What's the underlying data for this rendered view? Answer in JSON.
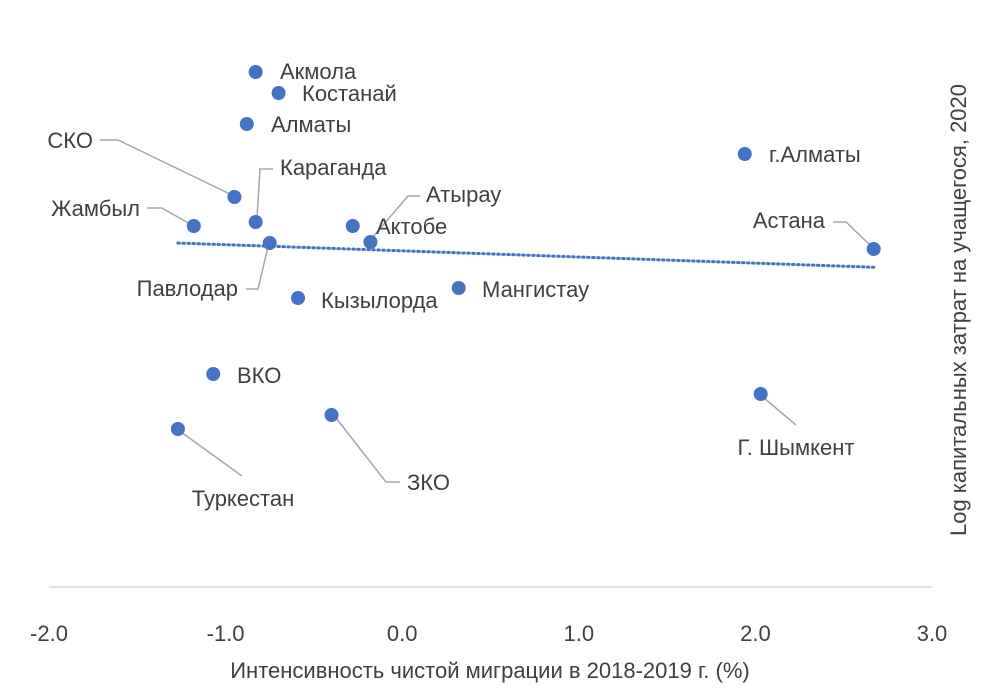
{
  "chart_data": {
    "type": "scatter",
    "x_label": "Интенсивность чистой миграции в 2018-2019 г. (%)",
    "y_label": "Log капитальных затрат на учащегося, 2020",
    "color": "#4472c4",
    "trendline": true,
    "xlim": [
      -2.0,
      3.0
    ],
    "xticks": [
      {
        "value": -2,
        "label": "-2.0"
      },
      {
        "value": -1,
        "label": "-1.0"
      },
      {
        "value": 0,
        "label": "0.0"
      },
      {
        "value": 1,
        "label": "1.0"
      },
      {
        "value": 2,
        "label": "2.0"
      },
      {
        "value": 3,
        "label": "3.0"
      }
    ],
    "ylim": [
      0,
      5.7
    ],
    "labels": [
      "Акмола",
      "Костанай",
      "Алматы",
      "СКО",
      "Караганда",
      "Жамбыл",
      "Павлодар",
      "Атырау",
      "Актобе",
      "Кызылорда",
      "Мангистау",
      "ВКО",
      "ЗКО",
      "Туркестан",
      "г.Алматы",
      "Астана",
      "Г. Шымкент"
    ],
    "x": [
      -0.83,
      -0.7,
      -0.88,
      -0.95,
      -0.83,
      -1.18,
      -0.75,
      -0.28,
      -0.18,
      -0.59,
      0.32,
      -1.07,
      -0.4,
      -1.27,
      1.94,
      2.67,
      2.03
    ],
    "values": [
      5.15,
      4.94,
      4.63,
      3.9,
      3.65,
      3.61,
      3.44,
      3.61,
      3.45,
      2.89,
      2.99,
      2.13,
      1.72,
      1.58,
      4.33,
      3.38,
      1.93
    ]
  }
}
